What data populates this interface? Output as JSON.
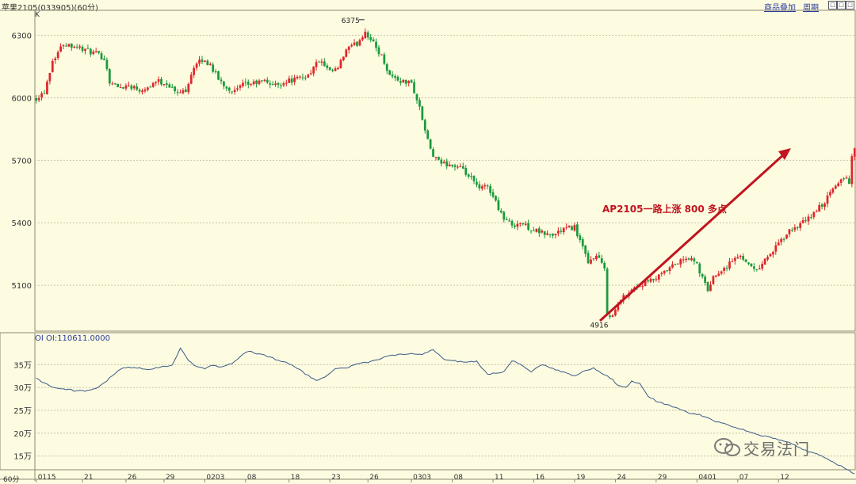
{
  "header": {
    "title": "苹果2105(033905)(60分)",
    "kline_label": "K",
    "links": [
      "商品叠加",
      "周期"
    ],
    "window_buttons": [
      "□",
      "□",
      "□"
    ]
  },
  "annotation": "AP2105一路上涨 800 多点",
  "watermark": "交易法门",
  "colors": {
    "background": "#fdfbe0",
    "up": "#e0262b",
    "down": "#1a9a3c",
    "oi_line": "#3a5a8a",
    "arrow": "#c0151f",
    "grid": "#c8c6a8"
  },
  "chart_data": [
    {
      "type": "candlestick",
      "title": "苹果2105(033905)(60分)",
      "ylim": [
        4880,
        6420
      ],
      "yticks": [
        5100,
        5400,
        5700,
        6000,
        6300
      ],
      "grid": true,
      "marks": {
        "high": 6375,
        "low": 4916
      },
      "close_path": [
        [
          0,
          6000
        ],
        [
          3,
          6030
        ],
        [
          6,
          6180
        ],
        [
          10,
          6260
        ],
        [
          14,
          6250
        ],
        [
          18,
          6230
        ],
        [
          22,
          6210
        ],
        [
          25,
          6190
        ],
        [
          27,
          6080
        ],
        [
          30,
          6050
        ],
        [
          34,
          6060
        ],
        [
          38,
          6040
        ],
        [
          41,
          6050
        ],
        [
          44,
          6080
        ],
        [
          48,
          6070
        ],
        [
          52,
          6020
        ],
        [
          55,
          6040
        ],
        [
          58,
          6150
        ],
        [
          61,
          6180
        ],
        [
          64,
          6160
        ],
        [
          67,
          6090
        ],
        [
          70,
          6050
        ],
        [
          73,
          6030
        ],
        [
          76,
          6060
        ],
        [
          80,
          6070
        ],
        [
          84,
          6080
        ],
        [
          88,
          6060
        ],
        [
          92,
          6080
        ],
        [
          96,
          6090
        ],
        [
          100,
          6110
        ],
        [
          104,
          6180
        ],
        [
          108,
          6120
        ],
        [
          111,
          6140
        ],
        [
          114,
          6230
        ],
        [
          118,
          6260
        ],
        [
          121,
          6320
        ],
        [
          124,
          6260
        ],
        [
          127,
          6200
        ],
        [
          130,
          6110
        ],
        [
          134,
          6080
        ],
        [
          138,
          6070
        ],
        [
          141,
          5950
        ],
        [
          144,
          5790
        ],
        [
          146,
          5720
        ],
        [
          148,
          5690
        ],
        [
          152,
          5680
        ],
        [
          156,
          5660
        ],
        [
          160,
          5610
        ],
        [
          163,
          5560
        ],
        [
          166,
          5580
        ],
        [
          169,
          5500
        ],
        [
          172,
          5420
        ],
        [
          175,
          5390
        ],
        [
          178,
          5400
        ],
        [
          182,
          5370
        ],
        [
          186,
          5350
        ],
        [
          190,
          5340
        ],
        [
          194,
          5370
        ],
        [
          198,
          5380
        ],
        [
          201,
          5280
        ],
        [
          203,
          5200
        ],
        [
          205,
          5240
        ],
        [
          207,
          5230
        ],
        [
          209,
          5170
        ],
        [
          210,
          4970
        ],
        [
          212,
          4950
        ],
        [
          214,
          5010
        ],
        [
          217,
          5060
        ],
        [
          220,
          5090
        ],
        [
          224,
          5110
        ],
        [
          228,
          5130
        ],
        [
          232,
          5170
        ],
        [
          236,
          5210
        ],
        [
          240,
          5230
        ],
        [
          243,
          5200
        ],
        [
          245,
          5130
        ],
        [
          247,
          5080
        ],
        [
          250,
          5160
        ],
        [
          253,
          5180
        ],
        [
          256,
          5220
        ],
        [
          259,
          5240
        ],
        [
          262,
          5210
        ],
        [
          264,
          5170
        ],
        [
          266,
          5190
        ],
        [
          269,
          5240
        ],
        [
          272,
          5280
        ],
        [
          275,
          5330
        ],
        [
          278,
          5370
        ],
        [
          281,
          5390
        ],
        [
          284,
          5420
        ],
        [
          287,
          5460
        ],
        [
          290,
          5500
        ],
        [
          293,
          5560
        ],
        [
          296,
          5610
        ],
        [
          298,
          5620
        ],
        [
          299,
          5580
        ],
        [
          300,
          5730
        ],
        [
          301,
          5750
        ]
      ],
      "ohlc_sample": [
        {
          "o": 6003,
          "h": 6017,
          "l": 5975,
          "c": 5993
        },
        {
          "o": 6079,
          "h": 6104,
          "l": 6058,
          "c": 6088
        }
      ]
    },
    {
      "type": "line",
      "title": "OI OI:110611.0000",
      "yticks": [
        150000,
        200000,
        250000,
        300000,
        350000
      ],
      "ytick_labels": [
        "15万",
        "20万",
        "25万",
        "30万",
        "35万"
      ],
      "ylim": [
        120000,
        420000
      ],
      "grid": true,
      "oi_path": [
        [
          0,
          320000
        ],
        [
          3,
          310000
        ],
        [
          6,
          300000
        ],
        [
          10,
          298000
        ],
        [
          14,
          293000
        ],
        [
          18,
          292000
        ],
        [
          22,
          298000
        ],
        [
          25,
          310000
        ],
        [
          28,
          326000
        ],
        [
          31,
          340000
        ],
        [
          34,
          345000
        ],
        [
          38,
          342000
        ],
        [
          42,
          340000
        ],
        [
          46,
          346000
        ],
        [
          50,
          348000
        ],
        [
          53,
          386000
        ],
        [
          56,
          358000
        ],
        [
          59,
          345000
        ],
        [
          62,
          341000
        ],
        [
          65,
          349000
        ],
        [
          68,
          344000
        ],
        [
          72,
          352000
        ],
        [
          75,
          368000
        ],
        [
          78,
          380000
        ],
        [
          81,
          374000
        ],
        [
          84,
          371000
        ],
        [
          88,
          362000
        ],
        [
          92,
          355000
        ],
        [
          96,
          342000
        ],
        [
          100,
          326000
        ],
        [
          103,
          314000
        ],
        [
          106,
          322000
        ],
        [
          110,
          342000
        ],
        [
          114,
          342000
        ],
        [
          118,
          352000
        ],
        [
          122,
          355000
        ],
        [
          126,
          362000
        ],
        [
          130,
          370000
        ],
        [
          134,
          372000
        ],
        [
          138,
          374000
        ],
        [
          142,
          372000
        ],
        [
          146,
          383000
        ],
        [
          150,
          362000
        ],
        [
          154,
          358000
        ],
        [
          158,
          355000
        ],
        [
          162,
          358000
        ],
        [
          166,
          328000
        ],
        [
          169,
          332000
        ],
        [
          172,
          335000
        ],
        [
          175,
          358000
        ],
        [
          178,
          352000
        ],
        [
          182,
          335000
        ],
        [
          186,
          350000
        ],
        [
          190,
          342000
        ],
        [
          194,
          333000
        ],
        [
          198,
          325000
        ],
        [
          201,
          334000
        ],
        [
          205,
          343000
        ],
        [
          208,
          330000
        ],
        [
          211,
          322000
        ],
        [
          214,
          305000
        ],
        [
          217,
          300000
        ],
        [
          219,
          313000
        ],
        [
          222,
          308000
        ],
        [
          225,
          282000
        ],
        [
          228,
          270000
        ],
        [
          232,
          262000
        ],
        [
          236,
          255000
        ],
        [
          240,
          245000
        ],
        [
          244,
          240000
        ],
        [
          248,
          230000
        ],
        [
          252,
          222000
        ],
        [
          256,
          215000
        ],
        [
          260,
          208000
        ],
        [
          264,
          200000
        ],
        [
          268,
          193000
        ],
        [
          272,
          187000
        ],
        [
          276,
          182000
        ],
        [
          280,
          170000
        ],
        [
          284,
          160000
        ],
        [
          288,
          152000
        ],
        [
          292,
          140000
        ],
        [
          296,
          128000
        ],
        [
          301,
          110611
        ]
      ]
    }
  ],
  "xaxis": {
    "period_label": "60分",
    "ticks": [
      {
        "i": 0,
        "label": "0115"
      },
      {
        "i": 17,
        "label": "21"
      },
      {
        "i": 33,
        "label": "26"
      },
      {
        "i": 47,
        "label": "29"
      },
      {
        "i": 62,
        "label": "0203"
      },
      {
        "i": 77,
        "label": "08"
      },
      {
        "i": 93,
        "label": "18"
      },
      {
        "i": 108,
        "label": "23"
      },
      {
        "i": 122,
        "label": "26"
      },
      {
        "i": 138,
        "label": "0303"
      },
      {
        "i": 153,
        "label": "08"
      },
      {
        "i": 168,
        "label": "11"
      },
      {
        "i": 183,
        "label": "16"
      },
      {
        "i": 198,
        "label": "19"
      },
      {
        "i": 213,
        "label": "24"
      },
      {
        "i": 228,
        "label": "29"
      },
      {
        "i": 243,
        "label": "0401"
      },
      {
        "i": 258,
        "label": "07"
      },
      {
        "i": 273,
        "label": "12"
      }
    ],
    "count": 302
  }
}
